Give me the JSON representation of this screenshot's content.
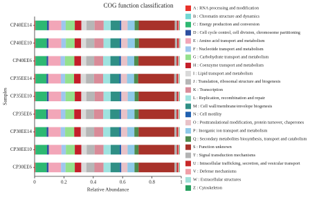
{
  "chart_data": {
    "type": "stacked-barh",
    "title": "COG function classification",
    "x_label": "Relative Abundance",
    "y_label": "Samples",
    "categories": [
      "CP40EE14",
      "CP40EE10",
      "CP40EE6",
      "CP35EE14",
      "CP35EE10",
      "CP35EE6",
      "CP30EE14",
      "CP30EE10",
      "CP30EE6"
    ],
    "xlim": [
      0,
      1
    ],
    "xticks": [
      0,
      0.2,
      0.4,
      0.6,
      0.8,
      1
    ],
    "series": [
      {
        "name": "A : RNA processing and modification",
        "color": "#e8312a",
        "values": [
          0.005,
          0.005,
          0.005,
          0.005,
          0.005,
          0.005,
          0.005,
          0.005,
          0.005
        ]
      },
      {
        "name": "B : Chromatin structure and dynamics",
        "color": "#72d8d4",
        "values": [
          0.002,
          0.002,
          0.002,
          0.002,
          0.002,
          0.002,
          0.002,
          0.002,
          0.002
        ]
      },
      {
        "name": "C : Energy production and conversion",
        "color": "#2eb872",
        "values": [
          0.078,
          0.076,
          0.075,
          0.074,
          0.077,
          0.073,
          0.075,
          0.078,
          0.076
        ]
      },
      {
        "name": "D : Cell cycle control, cell division, chromosome partitioning",
        "color": "#2d4fa0",
        "values": [
          0.012,
          0.012,
          0.011,
          0.012,
          0.012,
          0.011,
          0.012,
          0.012,
          0.012
        ]
      },
      {
        "name": "E : Amino acid transport and metabolism",
        "color": "#f2a6b8",
        "values": [
          0.085,
          0.087,
          0.084,
          0.086,
          0.085,
          0.088,
          0.084,
          0.086,
          0.085
        ]
      },
      {
        "name": "F : Nucleotide transport and metabolism",
        "color": "#9ec6ee",
        "values": [
          0.03,
          0.031,
          0.03,
          0.029,
          0.03,
          0.031,
          0.03,
          0.03,
          0.031
        ]
      },
      {
        "name": "G : Carbohydrate transport and metabolism",
        "color": "#94e08c",
        "values": [
          0.062,
          0.06,
          0.064,
          0.061,
          0.063,
          0.06,
          0.062,
          0.061,
          0.063
        ]
      },
      {
        "name": "H : Coenzyme transport and metabolism",
        "color": "#c41f2a",
        "values": [
          0.045,
          0.044,
          0.046,
          0.045,
          0.044,
          0.046,
          0.045,
          0.045,
          0.044
        ]
      },
      {
        "name": "I : Lipid transport and metabolism",
        "color": "#d9d9d9",
        "values": [
          0.035,
          0.034,
          0.035,
          0.036,
          0.035,
          0.034,
          0.035,
          0.036,
          0.035
        ]
      },
      {
        "name": "J : Translation, ribosomal structure and biogenesis",
        "color": "#b6b6b6",
        "values": [
          0.055,
          0.056,
          0.054,
          0.055,
          0.057,
          0.055,
          0.056,
          0.054,
          0.055
        ]
      },
      {
        "name": "K : Transcription",
        "color": "#d98b98",
        "values": [
          0.062,
          0.063,
          0.061,
          0.062,
          0.06,
          0.063,
          0.062,
          0.061,
          0.062
        ]
      },
      {
        "name": "L : Replication, recombination and repair",
        "color": "#9fe3e0",
        "values": [
          0.048,
          0.047,
          0.05,
          0.048,
          0.049,
          0.047,
          0.048,
          0.049,
          0.048
        ]
      },
      {
        "name": "M : Cell wall/membrane/envelope biogenesis",
        "color": "#2f8f85",
        "values": [
          0.062,
          0.063,
          0.061,
          0.063,
          0.062,
          0.064,
          0.062,
          0.061,
          0.063
        ]
      },
      {
        "name": "N : Cell motility",
        "color": "#2060b0",
        "values": [
          0.01,
          0.01,
          0.011,
          0.01,
          0.01,
          0.01,
          0.011,
          0.01,
          0.01
        ]
      },
      {
        "name": "O : Posttranslational modification, protein turnover, chaperones",
        "color": "#e8c2c8",
        "values": [
          0.043,
          0.044,
          0.043,
          0.042,
          0.044,
          0.043,
          0.043,
          0.044,
          0.042
        ]
      },
      {
        "name": "P : Inorganic ion transport and metabolism",
        "color": "#8ec9e8",
        "values": [
          0.048,
          0.049,
          0.047,
          0.048,
          0.047,
          0.049,
          0.048,
          0.047,
          0.048
        ]
      },
      {
        "name": "Q : Secondary metabolites biosynthesis, transport and catabolism",
        "color": "#4e8c4e",
        "values": [
          0.028,
          0.028,
          0.029,
          0.028,
          0.027,
          0.028,
          0.029,
          0.028,
          0.028
        ]
      },
      {
        "name": "S : Function unknown",
        "color": "#a8322a",
        "values": [
          0.245,
          0.246,
          0.245,
          0.246,
          0.245,
          0.244,
          0.244,
          0.245,
          0.245
        ]
      },
      {
        "name": "T : Signal transduction mechanisms",
        "color": "#b3b3b3",
        "values": [
          0.015,
          0.015,
          0.015,
          0.016,
          0.015,
          0.015,
          0.015,
          0.016,
          0.015
        ]
      },
      {
        "name": "U : Intracellular trafficking, secretion, and vesicular transport",
        "color": "#c82828",
        "values": [
          0.01,
          0.01,
          0.01,
          0.01,
          0.01,
          0.01,
          0.01,
          0.01,
          0.01
        ]
      },
      {
        "name": "V : Defense mechanisms",
        "color": "#f0a0a8",
        "values": [
          0.006,
          0.006,
          0.006,
          0.006,
          0.006,
          0.006,
          0.006,
          0.006,
          0.006
        ]
      },
      {
        "name": "W : Extracellular structures",
        "color": "#a0e0d8",
        "values": [
          0.001,
          0.001,
          0.001,
          0.001,
          0.001,
          0.001,
          0.001,
          0.001,
          0.001
        ]
      },
      {
        "name": "Z : Cytoskeleton",
        "color": "#28a060",
        "values": [
          0.003,
          0.003,
          0.003,
          0.003,
          0.003,
          0.003,
          0.003,
          0.003,
          0.003
        ]
      }
    ]
  }
}
